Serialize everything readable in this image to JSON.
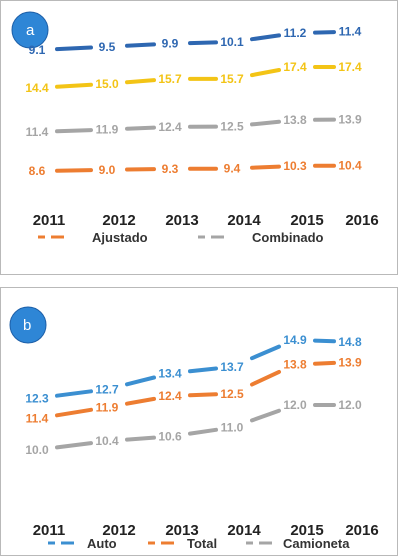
{
  "chart_data": [
    {
      "type": "line",
      "badge": "a",
      "categories": [
        "2011",
        "2012",
        "2013",
        "2014",
        "2015",
        "2016"
      ],
      "series": [
        {
          "name": "",
          "color": "#2e67b1",
          "values": [
            9.1,
            9.5,
            9.9,
            10.1,
            11.2,
            11.4
          ],
          "labels": [
            "9.1",
            "9.5",
            "9.9",
            "10.1",
            "11.2",
            "11.4"
          ]
        },
        {
          "name": "",
          "color": "#f3c416",
          "values": [
            14.4,
            15.0,
            15.7,
            15.7,
            17.4,
            17.4
          ],
          "labels": [
            "14.4",
            "15.0",
            "15.7",
            "15.7",
            "17.4",
            "17.4"
          ]
        },
        {
          "name": "Combinado",
          "color": "#a5a5a5",
          "values": [
            11.4,
            11.9,
            12.4,
            12.5,
            13.8,
            13.9
          ],
          "labels": [
            "11.4",
            "11.9",
            "12.4",
            "12.5",
            "13.8",
            "13.9"
          ]
        },
        {
          "name": "Ajustado",
          "color": "#ed7d31",
          "values": [
            8.6,
            9.0,
            9.3,
            9.4,
            10.3,
            10.4
          ],
          "labels": [
            "8.6",
            "9.0",
            "9.3",
            "9.4",
            "10.3",
            "10.4"
          ]
        }
      ],
      "legend": [
        {
          "name": "Ajustado",
          "color": "#ed7d31"
        },
        {
          "name": "Combinado",
          "color": "#a5a5a5"
        }
      ],
      "legend_position": "bottom",
      "grid": false
    },
    {
      "type": "line",
      "badge": "b",
      "categories": [
        "2011",
        "2012",
        "2013",
        "2014",
        "2015",
        "2016"
      ],
      "series": [
        {
          "name": "Auto",
          "color": "#3b8fd1",
          "values": [
            12.3,
            12.7,
            13.4,
            13.7,
            14.9,
            14.8
          ],
          "labels": [
            "12.3",
            "12.7",
            "13.4",
            "13.7",
            "14.9",
            "14.8"
          ]
        },
        {
          "name": "Total",
          "color": "#ed7d31",
          "values": [
            11.4,
            11.9,
            12.4,
            12.5,
            13.8,
            13.9
          ],
          "labels": [
            "11.4",
            "11.9",
            "12.4",
            "12.5",
            "13.8",
            "13.9"
          ]
        },
        {
          "name": "Camioneta",
          "color": "#a5a5a5",
          "values": [
            10.0,
            10.4,
            10.6,
            11.0,
            12.0,
            12.0
          ],
          "labels": [
            "10.0",
            "10.4",
            "10.6",
            "11.0",
            "12.0",
            "12.0"
          ]
        }
      ],
      "legend": [
        {
          "name": "Auto",
          "color": "#3b8fd1"
        },
        {
          "name": "Total",
          "color": "#ed7d31"
        },
        {
          "name": "Camioneta",
          "color": "#a5a5a5"
        }
      ],
      "legend_position": "bottom",
      "grid": false
    }
  ]
}
